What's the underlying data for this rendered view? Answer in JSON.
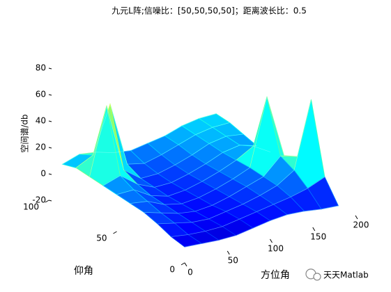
{
  "chart_data": {
    "type": "surface",
    "title": "九元L阵;信噪比：[50,50,50,50]；距离波长比：0.5",
    "xlabel": "方位角",
    "ylabel": "仰角",
    "zlabel": "空间谱/db",
    "x": [
      0,
      20,
      40,
      60,
      80,
      100,
      120,
      140,
      160,
      180
    ],
    "y": [
      0,
      10,
      20,
      30,
      40,
      50,
      60,
      70,
      80,
      90
    ],
    "z": [
      [
        -8,
        -9,
        -10,
        -10,
        -8,
        -6,
        -5,
        -6,
        -8,
        -9
      ],
      [
        -5,
        -7,
        -8,
        -8,
        -6,
        -4,
        -2,
        0,
        3,
        8
      ],
      [
        0,
        -3,
        -6,
        -7,
        -5,
        -3,
        0,
        4,
        12,
        62
      ],
      [
        4,
        0,
        -4,
        -6,
        -5,
        -2,
        2,
        6,
        18,
        14
      ],
      [
        6,
        4,
        -2,
        -5,
        -4,
        -1,
        3,
        8,
        58,
        10
      ],
      [
        8,
        8,
        0,
        -4,
        -3,
        0,
        4,
        9,
        16,
        8
      ],
      [
        10,
        14,
        4,
        -2,
        -2,
        1,
        5,
        10,
        12,
        8
      ],
      [
        12,
        62,
        10,
        0,
        0,
        3,
        7,
        12,
        14,
        12
      ],
      [
        14,
        20,
        55,
        6,
        3,
        6,
        10,
        14,
        16,
        16
      ],
      [
        12,
        16,
        14,
        10,
        8,
        10,
        12,
        16,
        18,
        18
      ]
    ],
    "xlim": [
      0,
      200
    ],
    "ylim": [
      0,
      100
    ],
    "zlim": [
      -20,
      80
    ],
    "xticks": [
      0,
      50,
      100,
      150,
      200
    ],
    "yticks": [
      0,
      50,
      100
    ],
    "zticks": [
      -20,
      0,
      20,
      40,
      60,
      80
    ],
    "colormap": "jet"
  },
  "watermark": "天天Matlab"
}
